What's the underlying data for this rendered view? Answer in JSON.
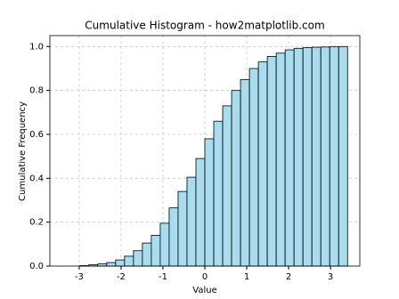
{
  "chart_data": {
    "type": "histogram",
    "title": "Cumulative Histogram - how2matplotlib.com",
    "xlabel": "Value",
    "ylabel": "Cumulative Frequency",
    "bins": [
      -2.982,
      -2.769,
      -2.556,
      -2.343,
      -2.13,
      -1.917,
      -1.704,
      -1.491,
      -1.278,
      -1.065,
      -0.852,
      -0.639,
      -0.426,
      -0.213,
      0.0,
      0.213,
      0.426,
      0.639,
      0.852,
      1.065,
      1.278,
      1.491,
      1.704,
      1.917,
      2.13,
      2.343,
      2.556,
      2.769,
      2.982,
      3.195,
      3.408
    ],
    "values": [
      0.002,
      0.006,
      0.01,
      0.016,
      0.028,
      0.045,
      0.07,
      0.105,
      0.14,
      0.195,
      0.265,
      0.34,
      0.405,
      0.49,
      0.58,
      0.66,
      0.73,
      0.8,
      0.85,
      0.9,
      0.93,
      0.955,
      0.97,
      0.985,
      0.992,
      0.995,
      0.997,
      0.998,
      0.999,
      1.0
    ],
    "color": "#a8dcee",
    "edgecolor": "#000000",
    "xlim": [
      -3.7,
      3.7
    ],
    "xticks": [
      -3,
      -2,
      -1,
      0,
      1,
      2,
      3
    ],
    "ylim": [
      0,
      1.05
    ],
    "yticks": [
      {
        "value": 0,
        "label": "0.0"
      },
      0.2,
      0.4,
      0.6,
      0.8,
      {
        "value": 1,
        "label": "1.0"
      }
    ],
    "grid": true
  }
}
